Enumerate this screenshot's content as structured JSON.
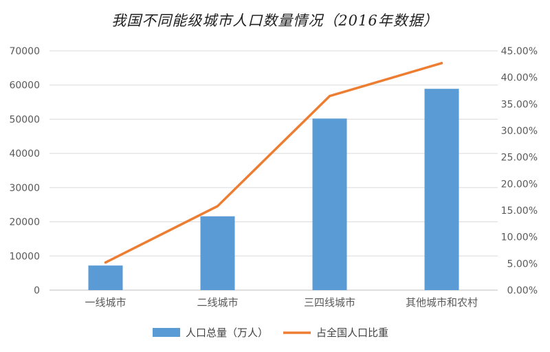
{
  "chart_data": {
    "type": "bar+line",
    "title": "我国不同能级城市人口数量情况（2016年数据）",
    "categories": [
      "一线城市",
      "二线城市",
      "三四线城市",
      "其他城市和农村"
    ],
    "series": [
      {
        "name": "人口总量（万人）",
        "type": "bar",
        "axis": "left",
        "color": "#5b9bd5",
        "values": [
          7200,
          21600,
          50200,
          58900
        ]
      },
      {
        "name": "占全国人口比重",
        "type": "line",
        "axis": "right",
        "color": "#ed7d31",
        "values": [
          0.052,
          0.158,
          0.365,
          0.427
        ]
      }
    ],
    "y_left": {
      "min": 0,
      "max": 70000,
      "ticks": [
        "0",
        "10000",
        "20000",
        "30000",
        "40000",
        "50000",
        "60000",
        "70000"
      ]
    },
    "y_right": {
      "min": 0,
      "max": 0.45,
      "ticks": [
        "0.00%",
        "5.00%",
        "10.00%",
        "15.00%",
        "20.00%",
        "25.00%",
        "30.00%",
        "35.00%",
        "40.00%",
        "45.00%"
      ]
    },
    "grid": true,
    "legend_position": "bottom"
  }
}
